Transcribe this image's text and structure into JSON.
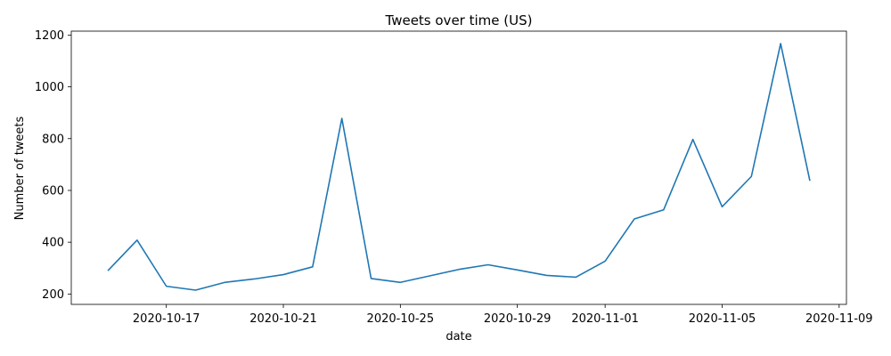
{
  "chart_data": {
    "type": "line",
    "title": "Tweets over time (US)",
    "xlabel": "date",
    "ylabel": "Number of tweets",
    "x": [
      "2020-10-15",
      "2020-10-16",
      "2020-10-17",
      "2020-10-18",
      "2020-10-19",
      "2020-10-20",
      "2020-10-21",
      "2020-10-22",
      "2020-10-23",
      "2020-10-24",
      "2020-10-25",
      "2020-10-26",
      "2020-10-27",
      "2020-10-28",
      "2020-10-29",
      "2020-10-30",
      "2020-10-31",
      "2020-11-01",
      "2020-11-02",
      "2020-11-03",
      "2020-11-04",
      "2020-11-05",
      "2020-11-06",
      "2020-11-07",
      "2020-11-08"
    ],
    "series": [
      {
        "values": [
          290,
          408,
          230,
          215,
          245,
          258,
          275,
          305,
          878,
          260,
          245,
          270,
          295,
          313,
          293,
          272,
          265,
          327,
          490,
          525,
          797,
          537,
          654,
          1167,
          637
        ],
        "color": "#1f77b4"
      }
    ],
    "xlim": [
      "2020-10-13T18:00",
      "2020-11-09T06:00"
    ],
    "ylim": [
      160,
      1215
    ],
    "x_ticks": [
      {
        "date": "2020-10-17",
        "label": "2020-10-17"
      },
      {
        "date": "2020-10-21",
        "label": "2020-10-21"
      },
      {
        "date": "2020-10-25",
        "label": "2020-10-25"
      },
      {
        "date": "2020-10-29",
        "label": "2020-10-29"
      },
      {
        "date": "2020-11-01",
        "label": "2020-11-01"
      },
      {
        "date": "2020-11-05",
        "label": "2020-11-05"
      },
      {
        "date": "2020-11-09",
        "label": "2020-11-09"
      }
    ],
    "y_ticks": [
      200,
      400,
      600,
      800,
      1000,
      1200
    ],
    "grid": false,
    "legend": "none"
  }
}
